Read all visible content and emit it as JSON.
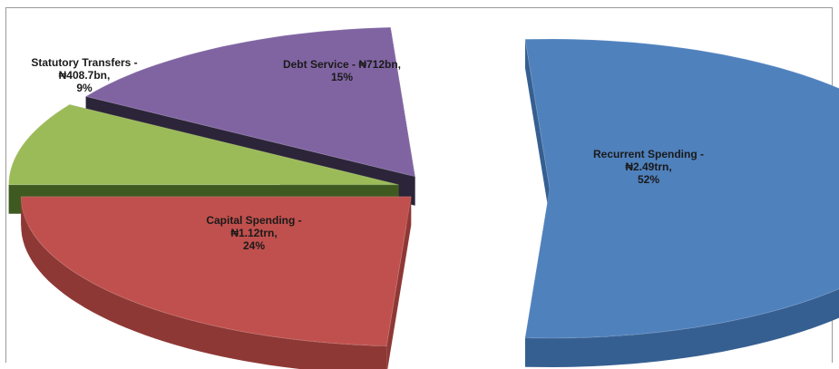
{
  "chart_data": {
    "type": "pie",
    "title": "",
    "currency_symbol": "₦",
    "slices": [
      {
        "label_lines": [
          "Recurrent Spending -",
          "₦2.49trn,",
          "52%"
        ],
        "category": "Recurrent Spending",
        "value_trn": 2.49,
        "percent": 52,
        "color": "#4f81bd",
        "side": "#365f91",
        "exploded": true
      },
      {
        "label_lines": [
          "Capital Spending -",
          "₦1.12trn,",
          "24%"
        ],
        "category": "Capital Spending",
        "value_trn": 1.12,
        "percent": 24,
        "color": "#c0504d",
        "side": "#8e3835",
        "exploded": false
      },
      {
        "label_lines": [
          "Statutory Transfers -",
          "₦408.7bn,",
          "9%"
        ],
        "category": "Statutory Transfers",
        "value_bn": 408.7,
        "percent": 9,
        "color": "#9bbb59",
        "side": "#3f5a21",
        "exploded": false
      },
      {
        "label_lines": [
          "Debt Service - ₦712bn,",
          "15%"
        ],
        "category": "Debt Service",
        "value_bn": 712,
        "percent": 15,
        "color": "#8064a2",
        "side": "#2c2438",
        "exploded": false
      }
    ]
  }
}
